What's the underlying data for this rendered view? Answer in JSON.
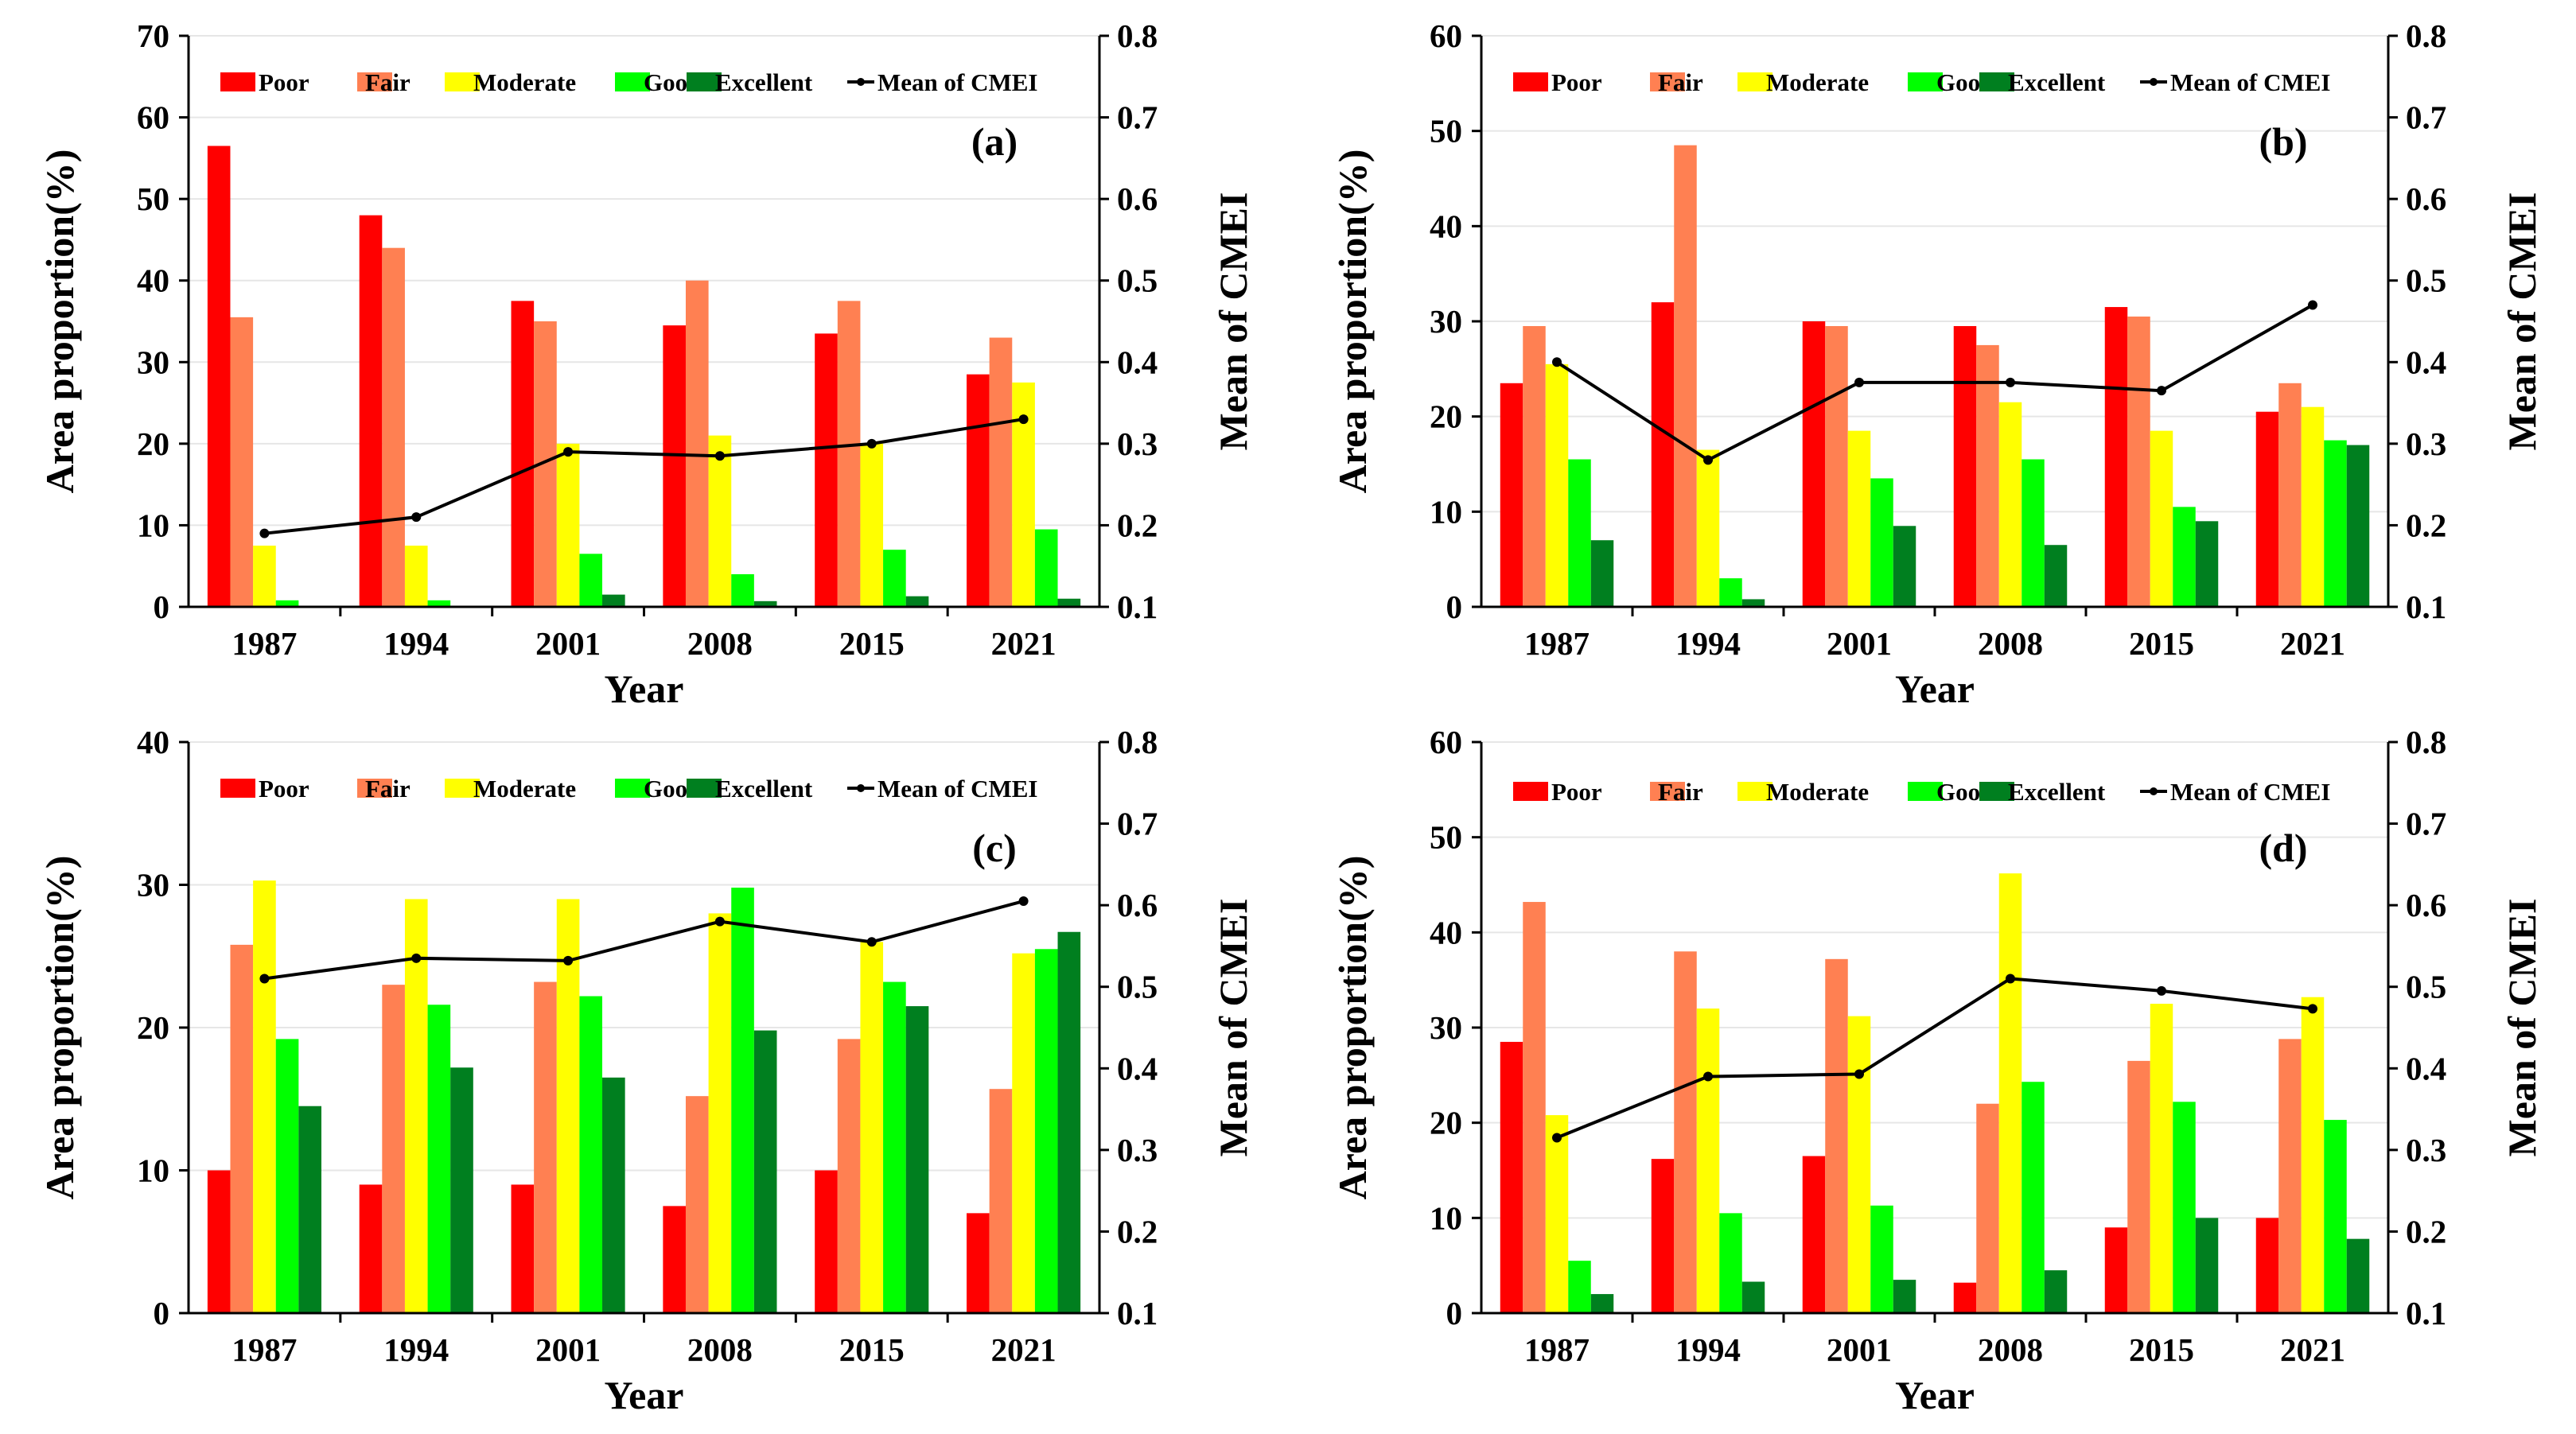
{
  "legend": {
    "poor": "Poor",
    "fair": "Fair",
    "moderate": "Moderate",
    "good": "Good",
    "excellent": "Excellent",
    "mean": "Mean of CMEI"
  },
  "colors": {
    "poor": "#ff0000",
    "fair": "#ff8052",
    "moderate": "#ffff00",
    "good": "#00ff00",
    "excellent": "#007f1f",
    "mean": "#000000",
    "grid": "#e6e6e6"
  },
  "chart_data": [
    {
      "type": "bar",
      "panel_label": "(a)",
      "categories": [
        "1987",
        "1994",
        "2001",
        "2008",
        "2015",
        "2021"
      ],
      "xlabel": "Year",
      "ylabel": "Area proportion(%)",
      "y2label": "Mean of CMEI",
      "ylim": [
        0,
        70
      ],
      "yticks": [
        0,
        10,
        20,
        30,
        40,
        50,
        60,
        70
      ],
      "y2lim": [
        0.1,
        0.8
      ],
      "y2ticks": [
        "0.1",
        "0.2",
        "0.3",
        "0.4",
        "0.5",
        "0.6",
        "0.7",
        "0.8"
      ],
      "legend_position": "top",
      "grid": true,
      "series": [
        {
          "name": "Poor",
          "values": [
            56.5,
            48.0,
            37.5,
            34.5,
            33.5,
            28.5
          ]
        },
        {
          "name": "Fair",
          "values": [
            35.5,
            44.0,
            35.0,
            40.0,
            37.5,
            33.0
          ]
        },
        {
          "name": "Moderate",
          "values": [
            7.5,
            7.5,
            20.0,
            21.0,
            20.0,
            27.5
          ]
        },
        {
          "name": "Good",
          "values": [
            0.8,
            0.8,
            6.5,
            4.0,
            7.0,
            9.5
          ]
        },
        {
          "name": "Excellent",
          "values": [
            0.1,
            0.1,
            1.5,
            0.7,
            1.3,
            1.0
          ]
        }
      ],
      "line_series": {
        "name": "Mean of CMEI",
        "values": [
          0.19,
          0.21,
          0.29,
          0.285,
          0.3,
          0.33
        ]
      }
    },
    {
      "type": "bar",
      "panel_label": "(b)",
      "categories": [
        "1987",
        "1994",
        "2001",
        "2008",
        "2015",
        "2021"
      ],
      "xlabel": "Year",
      "ylabel": "Area proportion(%)",
      "y2label": "Mean of CMEI",
      "ylim": [
        0,
        60
      ],
      "yticks": [
        0,
        10,
        20,
        30,
        40,
        50,
        60
      ],
      "y2lim": [
        0.1,
        0.8
      ],
      "y2ticks": [
        "0.1",
        "0.2",
        "0.3",
        "0.4",
        "0.5",
        "0.6",
        "0.7",
        "0.8"
      ],
      "legend_position": "top",
      "grid": true,
      "series": [
        {
          "name": "Poor",
          "values": [
            23.5,
            32.0,
            30.0,
            29.5,
            31.5,
            20.5
          ]
        },
        {
          "name": "Fair",
          "values": [
            29.5,
            48.5,
            29.5,
            27.5,
            30.5,
            23.5
          ]
        },
        {
          "name": "Moderate",
          "values": [
            25.5,
            16.5,
            18.5,
            21.5,
            18.5,
            21.0
          ]
        },
        {
          "name": "Good",
          "values": [
            15.5,
            3.0,
            13.5,
            15.5,
            10.5,
            17.5
          ]
        },
        {
          "name": "Excellent",
          "values": [
            7.0,
            0.8,
            8.5,
            6.5,
            9.0,
            17.0
          ]
        }
      ],
      "line_series": {
        "name": "Mean of CMEI",
        "values": [
          0.4,
          0.28,
          0.375,
          0.375,
          0.365,
          0.47
        ]
      }
    },
    {
      "type": "bar",
      "panel_label": "(c)",
      "categories": [
        "1987",
        "1994",
        "2001",
        "2008",
        "2015",
        "2021"
      ],
      "xlabel": "Year",
      "ylabel": "Area proportion(%)",
      "y2label": "Mean of CMEI",
      "ylim": [
        0,
        40
      ],
      "yticks": [
        0,
        10,
        20,
        30,
        40
      ],
      "y2lim": [
        0.1,
        0.8
      ],
      "y2ticks": [
        "0.1",
        "0.2",
        "0.3",
        "0.4",
        "0.5",
        "0.6",
        "0.7",
        "0.8"
      ],
      "legend_position": "top",
      "grid": true,
      "series": [
        {
          "name": "Poor",
          "values": [
            10.0,
            9.0,
            9.0,
            7.5,
            10.0,
            7.0
          ]
        },
        {
          "name": "Fair",
          "values": [
            25.8,
            23.0,
            23.2,
            15.2,
            19.2,
            15.7
          ]
        },
        {
          "name": "Moderate",
          "values": [
            30.3,
            29.0,
            29.0,
            28.0,
            26.0,
            25.2
          ]
        },
        {
          "name": "Good",
          "values": [
            19.2,
            21.6,
            22.2,
            29.8,
            23.2,
            25.5
          ]
        },
        {
          "name": "Excellent",
          "values": [
            14.5,
            17.2,
            16.5,
            19.8,
            21.5,
            26.7
          ]
        }
      ],
      "line_series": {
        "name": "Mean of CMEI",
        "values": [
          0.51,
          0.535,
          0.532,
          0.58,
          0.555,
          0.605
        ]
      }
    },
    {
      "type": "bar",
      "panel_label": "(d)",
      "categories": [
        "1987",
        "1994",
        "2001",
        "2008",
        "2015",
        "2021"
      ],
      "xlabel": "Year",
      "ylabel": "Area proportion(%)",
      "y2label": "Mean of CMEI",
      "ylim": [
        0,
        60
      ],
      "yticks": [
        0,
        10,
        20,
        30,
        40,
        50,
        60
      ],
      "y2lim": [
        0.1,
        0.8
      ],
      "y2ticks": [
        "0.1",
        "0.2",
        "0.3",
        "0.4",
        "0.5",
        "0.6",
        "0.7",
        "0.8"
      ],
      "legend_position": "top",
      "grid": true,
      "series": [
        {
          "name": "Poor",
          "values": [
            28.5,
            16.2,
            16.5,
            3.2,
            9.0,
            10.0
          ]
        },
        {
          "name": "Fair",
          "values": [
            43.2,
            38.0,
            37.2,
            22.0,
            26.5,
            28.8
          ]
        },
        {
          "name": "Moderate",
          "values": [
            20.8,
            32.0,
            31.2,
            46.2,
            32.5,
            33.2
          ]
        },
        {
          "name": "Good",
          "values": [
            5.5,
            10.5,
            11.3,
            24.3,
            22.2,
            20.3
          ]
        },
        {
          "name": "Excellent",
          "values": [
            2.0,
            3.3,
            3.5,
            4.5,
            10.0,
            7.8
          ]
        }
      ],
      "line_series": {
        "name": "Mean of CMEI",
        "values": [
          0.315,
          0.39,
          0.393,
          0.51,
          0.495,
          0.473
        ]
      }
    }
  ]
}
